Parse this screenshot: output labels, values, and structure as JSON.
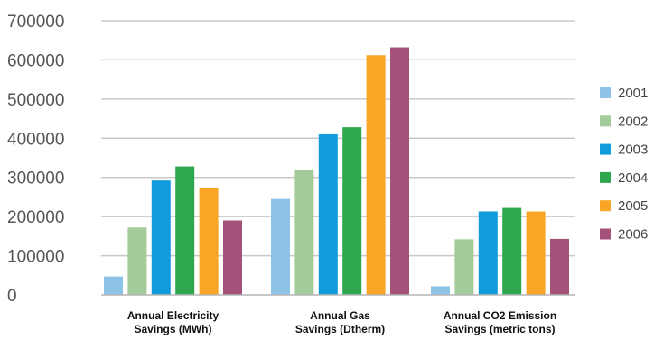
{
  "chart_data": {
    "type": "bar",
    "title": "",
    "xlabel": "",
    "ylabel": "",
    "ylim": [
      0,
      700000
    ],
    "yticks": [
      0,
      100000,
      200000,
      300000,
      400000,
      500000,
      600000,
      700000
    ],
    "ytick_labels": [
      "0",
      "100000",
      "200000",
      "300000",
      "400000",
      "500000",
      "600000",
      "700000"
    ],
    "grid": true,
    "legend_position": "right",
    "categories": [
      [
        "Annual Electricity",
        "Savings (MWh)"
      ],
      [
        "Annual Gas",
        "Savings (Dtherm)"
      ],
      [
        "Annual CO2 Emission",
        "Savings (metric tons)"
      ]
    ],
    "series": [
      {
        "name": "2001",
        "color": "#8ec3e8",
        "values": [
          47000,
          245000,
          22000
        ]
      },
      {
        "name": "2002",
        "color": "#a3cc9a",
        "values": [
          172000,
          320000,
          142000
        ]
      },
      {
        "name": "2003",
        "color": "#0f9bdc",
        "values": [
          292000,
          410000,
          213000
        ]
      },
      {
        "name": "2004",
        "color": "#2ea74e",
        "values": [
          328000,
          428000,
          222000
        ]
      },
      {
        "name": "2005",
        "color": "#f9a526",
        "values": [
          272000,
          612000,
          213000
        ]
      },
      {
        "name": "2006",
        "color": "#a5527a",
        "values": [
          190000,
          632000,
          143000
        ]
      }
    ]
  }
}
